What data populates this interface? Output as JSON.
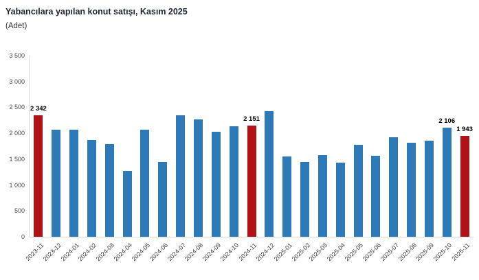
{
  "header": {
    "title": "Yabancılara yapılan konut satışı, Kasım 2025",
    "unit": "(Adet)"
  },
  "chart_data": {
    "type": "bar",
    "title": "Yabancılara yapılan konut satışı, Kasım 2025",
    "subtitle": "(Adet)",
    "xlabel": "",
    "ylabel": "",
    "ylim": [
      0,
      3500
    ],
    "grid": false,
    "legend": "none",
    "categories": [
      "2023-11",
      "2023-12",
      "2024-01",
      "2024-02",
      "2024-03",
      "2024-04",
      "2024-05",
      "2024-06",
      "2024-07",
      "2024-08",
      "2024-09",
      "2024-10",
      "2024-11",
      "2024-12",
      "2025-01",
      "2025-02",
      "2025-03",
      "2025-04",
      "2025-05",
      "2025-06",
      "2025-07",
      "2025-08",
      "2025-09",
      "2025-10",
      "2025-11"
    ],
    "values": [
      2342,
      2075,
      2070,
      1865,
      1790,
      1270,
      2070,
      1440,
      2345,
      2270,
      2030,
      2140,
      2151,
      2425,
      1545,
      1450,
      1575,
      1435,
      1780,
      1565,
      1920,
      1810,
      1860,
      2106,
      1943
    ],
    "highlighted_categories": [
      "2023-11",
      "2024-11",
      "2025-11"
    ],
    "data_labels": [
      {
        "index": 0,
        "text": "2 342"
      },
      {
        "index": 12,
        "text": "2 151"
      },
      {
        "index": 23,
        "text": "2 106"
      },
      {
        "index": 24,
        "text": "1 943"
      }
    ],
    "yticks": [
      0,
      500,
      1000,
      1500,
      2000,
      2500,
      3000,
      3500
    ],
    "ytick_labels": [
      "0",
      "500",
      "1 000",
      "1 500",
      "2 000",
      "2 500",
      "3 000",
      "3 500"
    ],
    "colors": {
      "bar": "#2e79b8",
      "highlight": "#b01218",
      "axis_line": "#d9d9d9",
      "tick_text": "#3c3c3c",
      "title_text": "#1f2430"
    }
  }
}
